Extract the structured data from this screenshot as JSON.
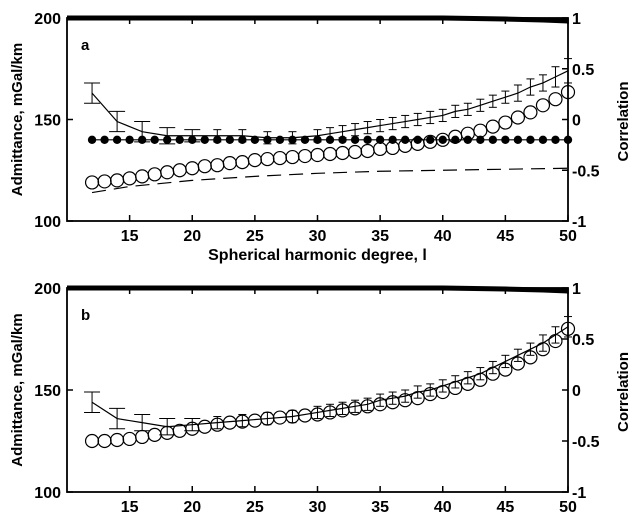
{
  "chart_data": [
    {
      "type": "line",
      "panel_label": "a",
      "xlabel": "Spherical harmonic degree, l",
      "ylabel": "Admittance, mGal/km",
      "y2label": "Correlation",
      "xlim": [
        10,
        50
      ],
      "ylim": [
        100,
        200
      ],
      "y2lim": [
        -1,
        1
      ],
      "xticks": [
        "15",
        "20",
        "25",
        "30",
        "35",
        "40",
        "45",
        "50"
      ],
      "yticks": [
        "100",
        "150",
        "200"
      ],
      "y2ticks": [
        "-1",
        "-0.5",
        "0",
        "0.5",
        "1"
      ],
      "series": [
        {
          "style": "line-with-errorbars",
          "axis": "left",
          "x": [
            12,
            14,
            16,
            18,
            20,
            22,
            24,
            26,
            28,
            30,
            31,
            32,
            33,
            34,
            35,
            36,
            37,
            38,
            39,
            40,
            41,
            42,
            43,
            44,
            45,
            46,
            47,
            48,
            49,
            50
          ],
          "y": [
            163,
            149,
            144,
            142,
            142,
            142,
            142,
            141,
            141,
            142,
            143,
            144,
            145,
            146,
            147,
            148,
            149,
            150,
            151,
            152,
            154,
            155,
            157,
            159,
            161,
            163,
            166,
            168,
            171,
            174
          ],
          "err": [
            5,
            5,
            5,
            4,
            3,
            3,
            3,
            3,
            3,
            3,
            3,
            3,
            3,
            3,
            3,
            3,
            3,
            3,
            3,
            3,
            3,
            3,
            3,
            3,
            3,
            4,
            4,
            4,
            5,
            6
          ]
        },
        {
          "style": "filled-circles",
          "axis": "left",
          "x": [
            12,
            13,
            14,
            15,
            16,
            17,
            18,
            19,
            20,
            21,
            22,
            23,
            24,
            25,
            26,
            27,
            28,
            29,
            30,
            31,
            32,
            33,
            34,
            35,
            36,
            37,
            38,
            39,
            40,
            41,
            42,
            43,
            44,
            45,
            46,
            47,
            48,
            49,
            50
          ],
          "y": [
            140,
            140,
            140,
            140,
            140,
            140,
            140,
            140,
            140,
            140,
            140,
            140,
            140,
            140,
            140,
            140,
            140,
            140,
            140,
            140,
            140,
            140,
            140,
            140,
            140,
            140,
            140,
            140,
            140,
            140,
            140,
            140,
            140,
            140,
            140,
            140,
            140,
            140,
            140
          ]
        },
        {
          "style": "open-circles",
          "axis": "right",
          "x": [
            12,
            13,
            14,
            15,
            16,
            17,
            18,
            19,
            20,
            21,
            22,
            23,
            24,
            25,
            26,
            27,
            28,
            29,
            30,
            31,
            32,
            33,
            34,
            35,
            36,
            37,
            38,
            39,
            40,
            41,
            42,
            43,
            44,
            45,
            46,
            47,
            48,
            49,
            50
          ],
          "y": [
            -0.62,
            -0.61,
            -0.6,
            -0.58,
            -0.56,
            -0.54,
            -0.52,
            -0.5,
            -0.48,
            -0.46,
            -0.45,
            -0.43,
            -0.42,
            -0.4,
            -0.39,
            -0.38,
            -0.37,
            -0.36,
            -0.35,
            -0.34,
            -0.33,
            -0.32,
            -0.31,
            -0.29,
            -0.28,
            -0.26,
            -0.24,
            -0.22,
            -0.2,
            -0.17,
            -0.14,
            -0.11,
            -0.07,
            -0.03,
            0.02,
            0.07,
            0.14,
            0.2,
            0.27
          ]
        },
        {
          "style": "dashed",
          "axis": "right",
          "x": [
            12,
            15,
            20,
            25,
            30,
            35,
            40,
            45,
            50
          ],
          "y": [
            -0.72,
            -0.66,
            -0.6,
            -0.56,
            -0.53,
            -0.51,
            -0.5,
            -0.49,
            -0.48
          ]
        },
        {
          "style": "thick-line",
          "axis": "right",
          "x": [
            10,
            20,
            30,
            40,
            45,
            48,
            50
          ],
          "y": [
            1,
            1,
            1,
            1,
            0.99,
            0.98,
            0.97
          ]
        }
      ]
    },
    {
      "type": "line",
      "panel_label": "b",
      "xlabel": "",
      "ylabel": "Admittance, mGal/km",
      "y2label": "Correlation",
      "xlim": [
        10,
        50
      ],
      "ylim": [
        100,
        200
      ],
      "y2lim": [
        -1,
        1
      ],
      "xticks": [
        "15",
        "20",
        "25",
        "30",
        "35",
        "40",
        "45",
        "50"
      ],
      "yticks": [
        "100",
        "150",
        "200"
      ],
      "y2ticks": [
        "-1",
        "-0.5",
        "0",
        "0.5",
        "1"
      ],
      "series": [
        {
          "style": "line-with-errorbars",
          "axis": "left",
          "x": [
            12,
            14,
            16,
            18,
            20,
            22,
            24,
            26,
            28,
            30,
            31,
            32,
            33,
            34,
            35,
            36,
            37,
            38,
            39,
            40,
            41,
            42,
            43,
            44,
            45,
            46,
            47,
            48,
            49,
            50
          ],
          "y": [
            144,
            136,
            134,
            132,
            133,
            134,
            135,
            136,
            137,
            139,
            140,
            141,
            142,
            143,
            145,
            146,
            147,
            149,
            150,
            152,
            154,
            156,
            158,
            161,
            164,
            167,
            170,
            173,
            177,
            181
          ],
          "err": [
            5,
            5,
            4,
            4,
            3,
            3,
            3,
            3,
            3,
            3,
            3,
            3,
            3,
            3,
            3,
            3,
            3,
            3,
            3,
            3,
            3,
            3,
            3,
            3,
            3,
            3,
            3,
            4,
            4,
            5
          ]
        },
        {
          "style": "open-circles",
          "axis": "left",
          "x": [
            12,
            13,
            14,
            15,
            16,
            17,
            18,
            19,
            20,
            21,
            22,
            23,
            24,
            25,
            26,
            27,
            28,
            29,
            30,
            31,
            32,
            33,
            34,
            35,
            36,
            37,
            38,
            39,
            40,
            41,
            42,
            43,
            44,
            45,
            46,
            47,
            48,
            49,
            50
          ],
          "y": [
            125,
            125,
            125.5,
            126,
            127,
            128,
            129,
            130,
            131,
            132,
            133,
            134,
            134.5,
            135,
            136,
            136.5,
            137,
            137.5,
            138,
            139,
            140,
            141,
            142,
            143,
            144,
            145,
            146,
            148,
            149,
            151,
            153,
            155,
            158,
            160,
            163,
            166,
            170,
            174,
            180
          ]
        },
        {
          "style": "thick-line",
          "axis": "right",
          "x": [
            10,
            20,
            30,
            40,
            45,
            48,
            50
          ],
          "y": [
            1,
            1,
            1,
            1,
            0.99,
            0.98,
            0.97
          ]
        }
      ]
    }
  ]
}
